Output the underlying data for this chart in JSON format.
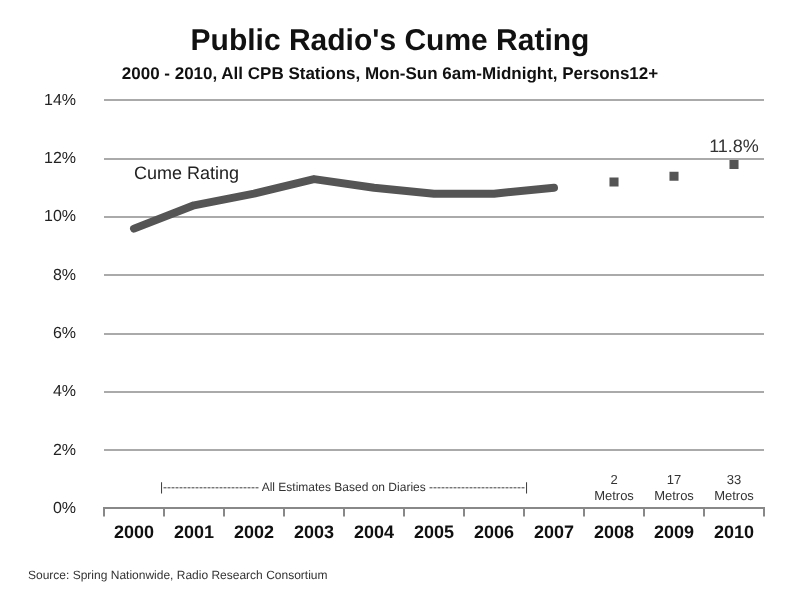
{
  "chart_data": {
    "type": "line",
    "title": "Public Radio's Cume Rating",
    "subtitle": "2000 - 2010, All CPB Stations, Mon-Sun 6am-Midnight, Persons12+",
    "categories": [
      "2000",
      "2001",
      "2002",
      "2003",
      "2004",
      "2005",
      "2006",
      "2007",
      "2008",
      "2009",
      "2010"
    ],
    "series": [
      {
        "name": "Cume Rating",
        "color": "#555555",
        "values": [
          9.6,
          10.4,
          10.8,
          11.3,
          11.0,
          10.8,
          10.8,
          11.0,
          null,
          null,
          null
        ]
      },
      {
        "type": "scatter",
        "marker": "square",
        "color": "#555555",
        "values": [
          null,
          null,
          null,
          null,
          null,
          null,
          null,
          null,
          11.2,
          11.4,
          11.8
        ],
        "value_labels": [
          null,
          null,
          null,
          null,
          null,
          null,
          null,
          null,
          null,
          null,
          "11.8%"
        ]
      }
    ],
    "ylim": [
      0,
      14
    ],
    "yticks": [
      {
        "value": 0,
        "label": "0%"
      },
      {
        "value": 2,
        "label": "2%"
      },
      {
        "value": 4,
        "label": "4%"
      },
      {
        "value": 6,
        "label": "6%"
      },
      {
        "value": 8,
        "label": "8%"
      },
      {
        "value": 10,
        "label": "10%"
      },
      {
        "value": 12,
        "label": "12%"
      },
      {
        "value": 14,
        "label": "14%"
      }
    ],
    "grid": "y",
    "legend": false,
    "annotations": [
      "|------------------------ All Estimates Based on Diaries ------------------------|",
      "2 Metros",
      "17 Metros",
      "33 Metros",
      "Source: Spring Nationwide, Radio Research Consortium"
    ]
  }
}
